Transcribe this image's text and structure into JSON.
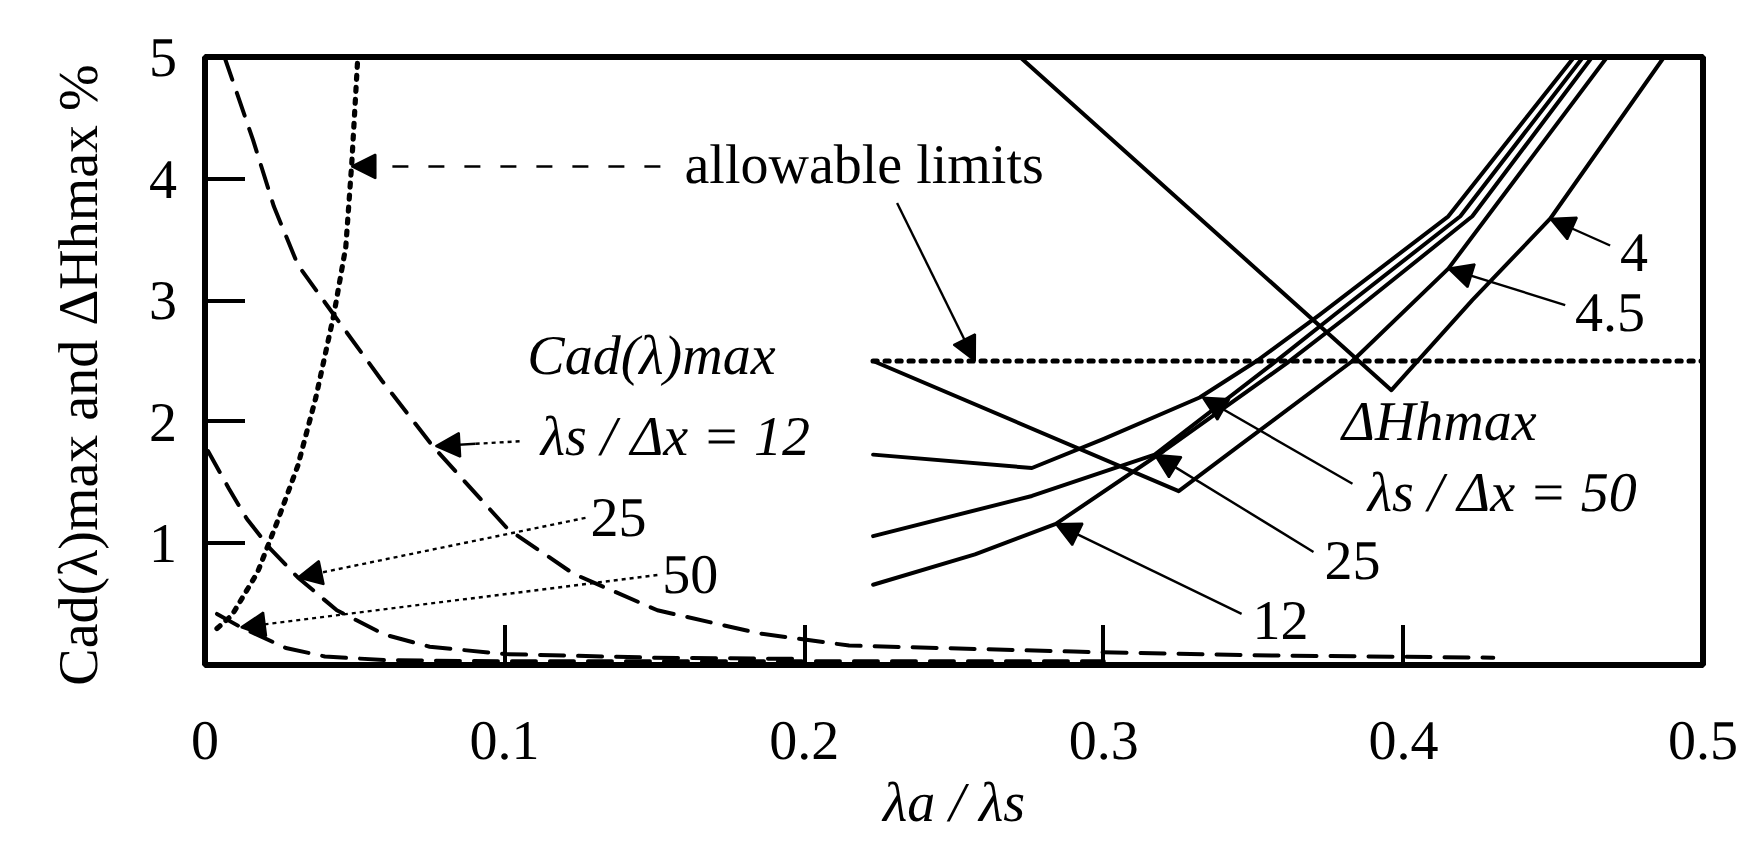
{
  "chart_data": {
    "type": "line",
    "xlabel": "λa / λs",
    "ylabel": "Cad(λ)max and ΔHhmax   %",
    "xlim": [
      0,
      0.5
    ],
    "ylim": [
      0,
      5
    ],
    "xticks": [
      0,
      0.1,
      0.2,
      0.3,
      0.4,
      0.5
    ],
    "yticks": [
      1,
      2,
      3,
      4,
      5
    ],
    "grid": false,
    "series": [
      {
        "color": "#000000",
        "line_style": "dotted",
        "x": [
          0.004,
          0.009,
          0.0175,
          0.024,
          0.031,
          0.037,
          0.043,
          0.047,
          0.049,
          0.051
        ],
        "values": [
          0.3,
          0.41,
          0.76,
          1.17,
          1.64,
          2.2,
          2.88,
          3.44,
          4.13,
          5.0
        ]
      },
      {
        "color": "#000000",
        "line_style": "dashed",
        "x": [
          0.0065,
          0.016,
          0.023,
          0.031,
          0.043,
          0.059,
          0.076,
          0.101,
          0.123,
          0.151,
          0.185,
          0.215,
          0.245,
          0.29,
          0.35,
          0.43
        ],
        "values": [
          5.0,
          4.32,
          3.77,
          3.29,
          2.88,
          2.34,
          1.8,
          1.12,
          0.75,
          0.45,
          0.26,
          0.16,
          0.14,
          0.11,
          0.08,
          0.06
        ]
      },
      {
        "color": "#000000",
        "line_style": "dashed",
        "x": [
          0.001,
          0.008,
          0.014,
          0.022,
          0.031,
          0.044,
          0.06,
          0.075,
          0.1,
          0.15,
          0.2
        ],
        "values": [
          1.76,
          1.45,
          1.2,
          0.95,
          0.72,
          0.45,
          0.25,
          0.15,
          0.09,
          0.06,
          0.05
        ]
      },
      {
        "color": "#000000",
        "line_style": "dashed",
        "x": [
          0.004,
          0.012,
          0.027,
          0.04,
          0.06,
          0.1,
          0.2,
          0.3
        ],
        "values": [
          0.42,
          0.31,
          0.14,
          0.07,
          0.04,
          0.03,
          0.03,
          0.03
        ]
      },
      {
        "color": "#000000",
        "line_style": "dotted",
        "x": [
          0.223,
          0.5
        ],
        "values": [
          2.5,
          2.5
        ]
      },
      {
        "color": "#000000",
        "line_style": "solid",
        "x": [
          0.272,
          0.396,
          0.423,
          0.449,
          0.487
        ],
        "values": [
          5.0,
          2.26,
          3.0,
          3.67,
          5.0
        ]
      },
      {
        "color": "#000000",
        "line_style": "solid",
        "x": [
          0.223,
          0.325,
          0.345,
          0.383,
          0.415,
          0.468
        ],
        "values": [
          2.5,
          1.43,
          1.8,
          2.5,
          3.26,
          5.0
        ]
      },
      {
        "color": "#000000",
        "line_style": "solid",
        "x": [
          0.223,
          0.276,
          0.3,
          0.332,
          0.351,
          0.372,
          0.415,
          0.457
        ],
        "values": [
          1.73,
          1.62,
          1.86,
          2.2,
          2.5,
          2.88,
          3.69,
          5.0
        ]
      },
      {
        "color": "#000000",
        "line_style": "solid",
        "x": [
          0.223,
          0.276,
          0.317,
          0.356,
          0.377,
          0.419,
          0.46
        ],
        "values": [
          1.06,
          1.39,
          1.73,
          2.47,
          2.88,
          3.69,
          5.0
        ]
      },
      {
        "color": "#000000",
        "line_style": "solid",
        "x": [
          0.223,
          0.257,
          0.284,
          0.32,
          0.361,
          0.382,
          0.423,
          0.463
        ],
        "values": [
          0.66,
          0.91,
          1.16,
          1.76,
          2.48,
          2.88,
          3.69,
          5.0
        ]
      }
    ],
    "annotations": [
      {
        "text": "allowable limits",
        "x": 0.257,
        "y": 2.5
      },
      "Cad(λ)max",
      {
        "text": "λs / Δx = 12",
        "x": 0.077,
        "y": 1.8
      },
      {
        "text": "25",
        "x": 0.031,
        "y": 0.72
      },
      {
        "text": "50",
        "x": 0.012,
        "y": 0.31
      },
      {
        "text": "4",
        "x": 0.449,
        "y": 3.67
      },
      {
        "text": "4.5",
        "x": 0.415,
        "y": 3.26
      },
      "ΔHhmax",
      {
        "text": "λs / Δx = 50",
        "x": 0.333,
        "y": 2.2
      },
      {
        "text": "25",
        "x": 0.317,
        "y": 1.73
      },
      {
        "text": "12",
        "x": 0.284,
        "y": 1.16
      }
    ]
  }
}
